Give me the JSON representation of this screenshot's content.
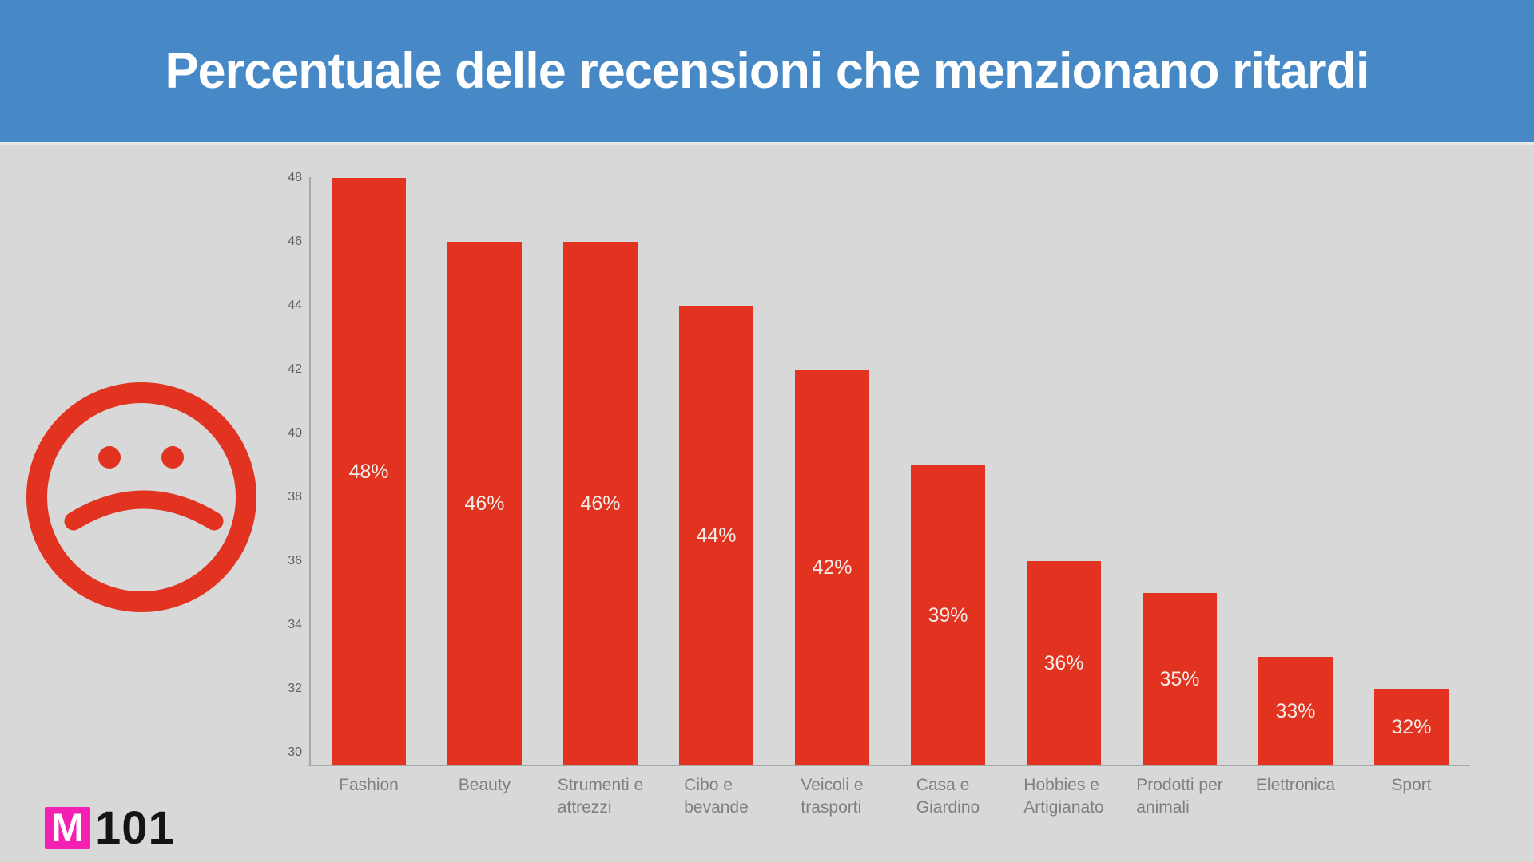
{
  "page": {
    "background": "#d8d8d8"
  },
  "header": {
    "background": "#4789c6",
    "text_color": "#ffffff"
  },
  "icons": {
    "sad_face_icon": {
      "name": "sad-face-icon",
      "color": "#e1331f"
    }
  },
  "footer_logo": {
    "m": "M",
    "suffix": "101",
    "square_color": "#f320b1",
    "m_color": "#ffffff",
    "suffix_color": "#141414"
  },
  "chart_data": {
    "type": "bar",
    "title": "Percentuale delle recensioni che menzionano ritardi",
    "categories": [
      "Fashion",
      "Beauty",
      "Strumenti e attrezzi",
      "Cibo e bevande",
      "Veicoli e trasporti",
      "Casa e Giardino",
      "Hobbies e Artigianato",
      "Prodotti per animali",
      "Elettronica",
      "Sport"
    ],
    "category_lines": [
      [
        "Fashion"
      ],
      [
        "Beauty"
      ],
      [
        "Strumenti e",
        "attrezzi"
      ],
      [
        "Cibo e",
        "bevande"
      ],
      [
        "Veicoli e",
        "trasporti"
      ],
      [
        "Casa e",
        "Giardino"
      ],
      [
        "Hobbies e",
        "Artigianato"
      ],
      [
        "Prodotti per",
        "animali"
      ],
      [
        "Elettronica"
      ],
      [
        "Sport"
      ]
    ],
    "values": [
      48,
      46,
      46,
      44,
      42,
      39,
      36,
      35,
      33,
      32
    ],
    "bar_labels": [
      "48%",
      "46%",
      "46%",
      "44%",
      "42%",
      "39%",
      "36%",
      "35%",
      "33%",
      "32%"
    ],
    "xlabel": "",
    "ylabel": "",
    "ylim": [
      30,
      48
    ],
    "yticks": [
      30,
      32,
      34,
      36,
      38,
      40,
      42,
      44,
      46,
      48
    ],
    "grid": false,
    "legend": false,
    "bar_color": "#e1331f",
    "bar_label_color": "#f2ebe7",
    "axis_color": "#a8a8a8",
    "tick_label_color": "#5f5f5f",
    "category_label_color": "#7f7f7f"
  }
}
